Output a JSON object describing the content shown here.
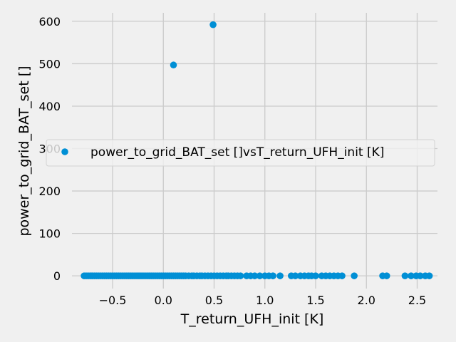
{
  "chart_data": {
    "type": "scatter",
    "xlabel": "T_return_UFH_init [K]",
    "ylabel": "power_to_grid_BAT_set []",
    "xlim": [
      -0.9,
      2.7
    ],
    "ylim": [
      -30,
      620
    ],
    "x_ticks": [
      -0.5,
      0.0,
      0.5,
      1.0,
      1.5,
      2.0,
      2.5
    ],
    "x_tick_labels": [
      "−0.5",
      "0.0",
      "0.5",
      "1.0",
      "1.5",
      "2.0",
      "2.5"
    ],
    "y_ticks": [
      0,
      100,
      200,
      300,
      400,
      500,
      600
    ],
    "y_tick_labels": [
      "0",
      "100",
      "200",
      "300",
      "400",
      "500",
      "600"
    ],
    "grid": true,
    "legend_position": "center-right",
    "colors": {
      "series": "#008fd5",
      "background": "#f0f0f0",
      "grid": "#cbcbcb"
    },
    "series": [
      {
        "name": "power_to_grid_BAT_set []vsT_return_UFH_init [K]",
        "points": [
          [
            -0.78,
            0
          ],
          [
            -0.76,
            0
          ],
          [
            -0.74,
            0
          ],
          [
            -0.72,
            0
          ],
          [
            -0.7,
            0
          ],
          [
            -0.68,
            0
          ],
          [
            -0.66,
            0
          ],
          [
            -0.64,
            0
          ],
          [
            -0.62,
            0
          ],
          [
            -0.6,
            0
          ],
          [
            -0.58,
            0
          ],
          [
            -0.56,
            0
          ],
          [
            -0.54,
            0
          ],
          [
            -0.52,
            0
          ],
          [
            -0.5,
            0
          ],
          [
            -0.48,
            0
          ],
          [
            -0.46,
            0
          ],
          [
            -0.44,
            0
          ],
          [
            -0.42,
            0
          ],
          [
            -0.4,
            0
          ],
          [
            -0.38,
            0
          ],
          [
            -0.36,
            0
          ],
          [
            -0.34,
            0
          ],
          [
            -0.32,
            0
          ],
          [
            -0.3,
            0
          ],
          [
            -0.28,
            0
          ],
          [
            -0.26,
            0
          ],
          [
            -0.24,
            0
          ],
          [
            -0.22,
            0
          ],
          [
            -0.2,
            0
          ],
          [
            -0.18,
            0
          ],
          [
            -0.16,
            0
          ],
          [
            -0.14,
            0
          ],
          [
            -0.12,
            0
          ],
          [
            -0.1,
            0
          ],
          [
            -0.08,
            0
          ],
          [
            -0.06,
            0
          ],
          [
            -0.04,
            0
          ],
          [
            -0.02,
            0
          ],
          [
            0.0,
            0
          ],
          [
            0.02,
            0
          ],
          [
            0.04,
            0
          ],
          [
            0.06,
            0
          ],
          [
            0.08,
            0
          ],
          [
            0.1,
            0
          ],
          [
            0.12,
            0
          ],
          [
            0.14,
            0
          ],
          [
            0.16,
            0
          ],
          [
            0.18,
            0
          ],
          [
            0.2,
            0
          ],
          [
            0.22,
            0
          ],
          [
            0.25,
            0
          ],
          [
            0.28,
            0
          ],
          [
            0.3,
            0
          ],
          [
            0.33,
            0
          ],
          [
            0.36,
            0
          ],
          [
            0.38,
            0
          ],
          [
            0.41,
            0
          ],
          [
            0.44,
            0
          ],
          [
            0.47,
            0
          ],
          [
            0.5,
            0
          ],
          [
            0.53,
            0
          ],
          [
            0.56,
            0
          ],
          [
            0.59,
            0
          ],
          [
            0.62,
            0
          ],
          [
            0.64,
            0
          ],
          [
            0.67,
            0
          ],
          [
            0.7,
            0
          ],
          [
            0.73,
            0
          ],
          [
            0.76,
            0
          ],
          [
            0.82,
            0
          ],
          [
            0.86,
            0
          ],
          [
            0.9,
            0
          ],
          [
            0.95,
            0
          ],
          [
            1.0,
            0
          ],
          [
            1.04,
            0
          ],
          [
            1.08,
            0
          ],
          [
            1.15,
            0
          ],
          [
            1.26,
            0
          ],
          [
            1.3,
            0
          ],
          [
            1.35,
            0
          ],
          [
            1.39,
            0
          ],
          [
            1.43,
            0
          ],
          [
            1.46,
            0
          ],
          [
            1.5,
            0
          ],
          [
            1.56,
            0
          ],
          [
            1.6,
            0
          ],
          [
            1.64,
            0
          ],
          [
            1.68,
            0
          ],
          [
            1.72,
            0
          ],
          [
            1.76,
            0
          ],
          [
            1.88,
            0
          ],
          [
            2.16,
            0
          ],
          [
            2.2,
            0
          ],
          [
            2.38,
            0
          ],
          [
            2.44,
            0
          ],
          [
            2.49,
            0
          ],
          [
            2.53,
            0
          ],
          [
            2.58,
            0
          ],
          [
            2.62,
            0
          ],
          [
            0.1,
            497
          ],
          [
            0.49,
            592
          ]
        ]
      }
    ]
  }
}
